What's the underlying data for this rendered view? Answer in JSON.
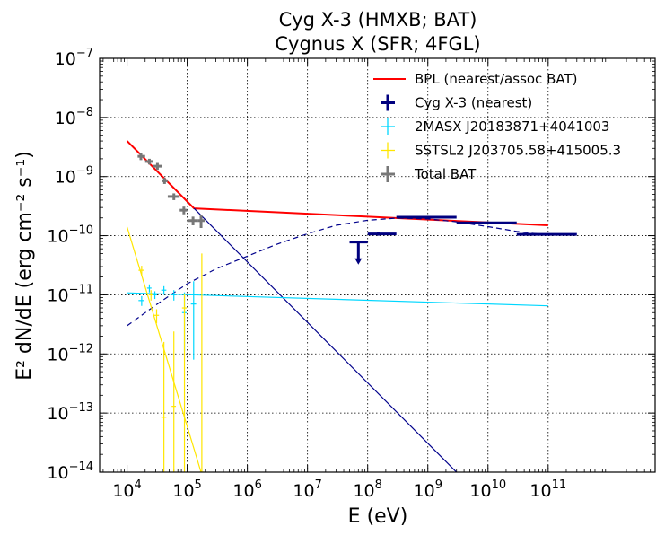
{
  "chart_data": {
    "type": "scatter",
    "title_lines": [
      "Cyg X-3 (HMXB; BAT)",
      "Cygnus X (SFR; 4FGL)"
    ],
    "xlabel": "E (eV)",
    "ylabel": "E² dN/dE (erg cm⁻² s⁻¹)",
    "xscale": "log",
    "yscale": "log",
    "xlim": [
      3500,
      6000000000000
    ],
    "ylim": [
      1e-14,
      1e-07
    ],
    "grid": true,
    "legend_position": "top-right",
    "x_ticks": [
      {
        "value": 10000,
        "mantissa": "10",
        "exp": "4"
      },
      {
        "value": 100000,
        "mantissa": "10",
        "exp": "5"
      },
      {
        "value": 1000000,
        "mantissa": "10",
        "exp": "6"
      },
      {
        "value": 10000000,
        "mantissa": "10",
        "exp": "7"
      },
      {
        "value": 100000000,
        "mantissa": "10",
        "exp": "8"
      },
      {
        "value": 1000000000,
        "mantissa": "10",
        "exp": "9"
      },
      {
        "value": 10000000000,
        "mantissa": "10",
        "exp": "10"
      },
      {
        "value": 100000000000,
        "mantissa": "10",
        "exp": "11"
      }
    ],
    "y_ticks": [
      {
        "value": 1e-14,
        "mantissa": "10",
        "exp": "−14"
      },
      {
        "value": 1e-13,
        "mantissa": "10",
        "exp": "−13"
      },
      {
        "value": 1e-12,
        "mantissa": "10",
        "exp": "−12"
      },
      {
        "value": 1e-11,
        "mantissa": "10",
        "exp": "−11"
      },
      {
        "value": 1e-10,
        "mantissa": "10",
        "exp": "−10"
      },
      {
        "value": 1e-09,
        "mantissa": "10",
        "exp": "−9"
      },
      {
        "value": 1e-08,
        "mantissa": "10",
        "exp": "−8"
      },
      {
        "value": 1e-07,
        "mantissa": "10",
        "exp": "−7"
      }
    ],
    "legend": [
      {
        "label": "BPL (nearest/assoc BAT)",
        "color": "#ff0000",
        "marker": "line"
      },
      {
        "label": "Cyg X-3 (nearest)",
        "color": "#00007f",
        "marker": "cross"
      },
      {
        "label": "2MASX J20183871+4041003",
        "color": "#00d7ff",
        "marker": "cross"
      },
      {
        "label": "SSTSL2 J203705.58+415005.3",
        "color": "#ffe600",
        "marker": "cross"
      },
      {
        "label": "Total BAT",
        "color": "#777777",
        "marker": "cross"
      }
    ],
    "lines": [
      {
        "color": "#ff0000",
        "width": 2,
        "dash": "",
        "points": [
          [
            10000,
            4e-09
          ],
          [
            130000,
            2.9e-10
          ],
          [
            100000000000,
            1.5e-10
          ]
        ]
      },
      {
        "color": "#00008b",
        "width": 1.2,
        "dash": "",
        "points": [
          [
            130000,
            2.9e-10
          ],
          [
            3000000000,
            1e-14
          ]
        ]
      },
      {
        "color": "#00008b",
        "width": 1.2,
        "dash": "6,4",
        "points": [
          [
            10000,
            3e-12
          ],
          [
            30000,
            6.7e-12
          ],
          [
            100000,
            1.54e-11
          ],
          [
            300000,
            2.74e-11
          ],
          [
            1000000,
            4.5e-11
          ],
          [
            3000000,
            7.1e-11
          ],
          [
            10000000,
            1.08e-10
          ],
          [
            30000000,
            1.5e-10
          ],
          [
            100000000,
            1.82e-10
          ],
          [
            300000000,
            1.98e-10
          ],
          [
            1000000000,
            1.92e-10
          ],
          [
            3000000000,
            1.72e-10
          ],
          [
            10000000000,
            1.42e-10
          ],
          [
            30000000000,
            1.18e-10
          ],
          [
            100000000000,
            1.02e-10
          ]
        ]
      },
      {
        "color": "#00d7ff",
        "width": 1.2,
        "dash": "",
        "points": [
          [
            10000,
            1.08e-11
          ],
          [
            100000000000,
            6.5e-12
          ]
        ]
      },
      {
        "color": "#ffe600",
        "width": 1.2,
        "dash": "",
        "points": [
          [
            10000,
            1.4e-10
          ],
          [
            170000,
            1e-14
          ]
        ]
      }
    ],
    "series": [
      {
        "name": "Total BAT",
        "color": "#777777",
        "width": 3,
        "points": [
          {
            "x": 17000,
            "xlo": 15000,
            "xhi": 20000,
            "y": 2.2e-09,
            "ylo": 1.9e-09,
            "yhi": 2.5e-09
          },
          {
            "x": 23500,
            "xlo": 20000,
            "xhi": 27500,
            "y": 1.8e-09,
            "ylo": 1.6e-09,
            "yhi": 2e-09
          },
          {
            "x": 32000,
            "xlo": 27500,
            "xhi": 37500,
            "y": 1.5e-09,
            "ylo": 1.3e-09,
            "yhi": 1.7e-09
          },
          {
            "x": 42000,
            "xlo": 37500,
            "xhi": 47500,
            "y": 8.5e-10,
            "ylo": 7.5e-10,
            "yhi": 9.5e-10
          },
          {
            "x": 60000,
            "xlo": 47500,
            "xhi": 75000,
            "y": 4.6e-10,
            "ylo": 4e-10,
            "yhi": 5.2e-10
          },
          {
            "x": 88000,
            "xlo": 75000,
            "xhi": 100000,
            "y": 2.7e-10,
            "ylo": 2.3e-10,
            "yhi": 3.1e-10
          },
          {
            "x": 125000,
            "xlo": 100000,
            "xhi": 150000,
            "y": 1.8e-10,
            "ylo": 1.5e-10,
            "yhi": 2.1e-10
          },
          {
            "x": 170000,
            "xlo": 150000,
            "xhi": 195000,
            "y": 1.8e-10,
            "ylo": 1.35e-10,
            "yhi": 2.25e-10
          }
        ]
      },
      {
        "name": "Cyg X-3 (nearest)",
        "color": "#00007f",
        "width": 3,
        "upper_limit_indices": [
          0
        ],
        "points": [
          {
            "x": 70000000,
            "xlo": 50000000,
            "xhi": 100000000,
            "y": 7.8e-11,
            "ylo": 3.6e-11,
            "yhi": 7.8e-11
          },
          {
            "x": 150000000,
            "xlo": 100000000,
            "xhi": 300000000,
            "y": 1.07e-10,
            "ylo": 1e-10,
            "yhi": 1.14e-10
          },
          {
            "x": 1200000000,
            "xlo": 300000000,
            "xhi": 3000000000,
            "y": 2.05e-10,
            "ylo": 1.95e-10,
            "yhi": 2.15e-10
          },
          {
            "x": 12000000000,
            "xlo": 3000000000,
            "xhi": 30000000000,
            "y": 1.65e-10,
            "ylo": 1.6e-10,
            "yhi": 1.7e-10
          },
          {
            "x": 100000000000,
            "xlo": 30000000000,
            "xhi": 300000000000,
            "y": 1.05e-10,
            "ylo": 1e-10,
            "yhi": 1.1e-10
          }
        ]
      },
      {
        "name": "2MASX J20183871+4041003",
        "color": "#00d7ff",
        "width": 1.2,
        "points": [
          {
            "x": 17500,
            "xlo": 15500,
            "xhi": 19500,
            "y": 8e-12,
            "ylo": 6.5e-12,
            "yhi": 9.5e-12
          },
          {
            "x": 23500,
            "xlo": 21500,
            "xhi": 25500,
            "y": 1.3e-11,
            "ylo": 1.1e-11,
            "yhi": 1.5e-11
          },
          {
            "x": 29000,
            "xlo": 26500,
            "xhi": 31500,
            "y": 1e-11,
            "ylo": 8.5e-12,
            "yhi": 1.15e-11
          },
          {
            "x": 41000,
            "xlo": 37000,
            "xhi": 45000,
            "y": 1.2e-11,
            "ylo": 1e-11,
            "yhi": 1.4e-11
          },
          {
            "x": 60000,
            "xlo": 55000,
            "xhi": 65000,
            "y": 1e-11,
            "ylo": 8e-12,
            "yhi": 1.2e-11
          },
          {
            "x": 90000,
            "xlo": 82000,
            "xhi": 98000,
            "y": 5e-12,
            "ylo": 1.1e-12,
            "yhi": 1.1e-11
          },
          {
            "x": 128000,
            "xlo": 115000,
            "xhi": 141000,
            "y": 7e-12,
            "ylo": 8e-13,
            "yhi": 1.7e-11
          }
        ]
      },
      {
        "name": "SSTSL2 J203705.58+415005.3",
        "color": "#ffe600",
        "width": 1.2,
        "points": [
          {
            "x": 17500,
            "xlo": 15500,
            "xhi": 19500,
            "y": 2.6e-11,
            "ylo": 2.1e-11,
            "yhi": 3.1e-11
          },
          {
            "x": 25000,
            "xlo": 23000,
            "xhi": 27000,
            "y": 1e-11,
            "ylo": 8e-12,
            "yhi": 1.2e-11
          },
          {
            "x": 31000,
            "xlo": 28000,
            "xhi": 34000,
            "y": 4.5e-12,
            "ylo": 3.3e-12,
            "yhi": 5.7e-12
          },
          {
            "x": 41000,
            "xlo": 37000,
            "xhi": 45000,
            "y": 8.5e-14,
            "ylo": 1e-14,
            "yhi": 1.6e-12
          },
          {
            "x": 60000,
            "xlo": 55000,
            "xhi": 65000,
            "y": 1.3e-13,
            "ylo": 1e-14,
            "yhi": 2.4e-12
          },
          {
            "x": 90000,
            "xlo": 82000,
            "xhi": 98000,
            "y": 6e-12,
            "ylo": 1e-14,
            "yhi": 1.05e-11
          },
          {
            "x": 175000,
            "xlo": 160000,
            "xhi": 190000,
            "y": 1e-14,
            "ylo": 1e-14,
            "yhi": 5e-11
          }
        ]
      }
    ]
  }
}
